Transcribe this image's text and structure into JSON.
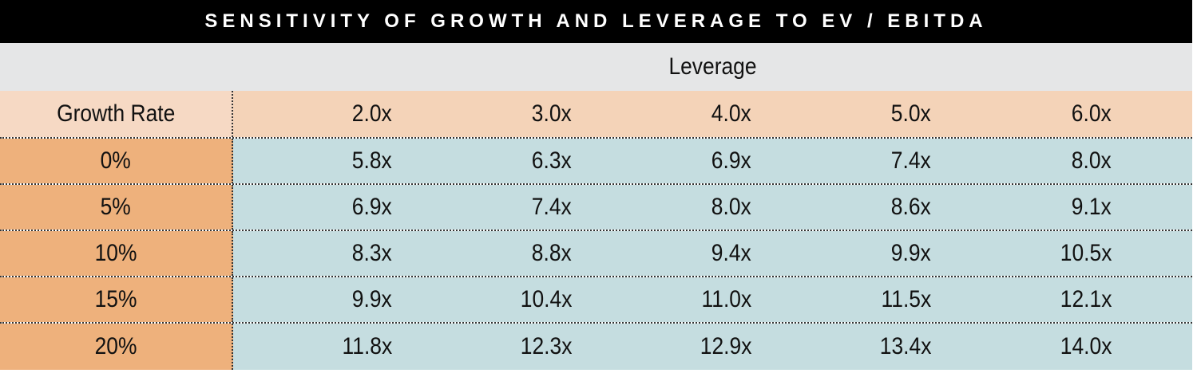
{
  "title": "SENSITIVITY OF GROWTH AND LEVERAGE TO EV / EBITDA",
  "column_group_label": "Leverage",
  "row_header_label": "Growth Rate",
  "columns": [
    "2.0x",
    "3.0x",
    "4.0x",
    "5.0x",
    "6.0x"
  ],
  "rows": [
    {
      "label": "0%",
      "values": [
        "5.8x",
        "6.3x",
        "6.9x",
        "7.4x",
        "8.0x"
      ]
    },
    {
      "label": "5%",
      "values": [
        "6.9x",
        "7.4x",
        "8.0x",
        "8.6x",
        "9.1x"
      ]
    },
    {
      "label": "10%",
      "values": [
        "8.3x",
        "8.8x",
        "9.4x",
        "9.9x",
        "10.5x"
      ]
    },
    {
      "label": "15%",
      "values": [
        "9.9x",
        "10.4x",
        "11.0x",
        "11.5x",
        "12.1x"
      ]
    },
    {
      "label": "20%",
      "values": [
        "11.8x",
        "12.3x",
        "12.9x",
        "13.4x",
        "14.0x"
      ]
    }
  ],
  "colors": {
    "title_bg": "#000000",
    "leverage_row_bg": "#e5e6e7",
    "header_row_label_bg": "#f6d9c4",
    "header_row_bg": "#f4d3b8",
    "row_label_bg": "#eeb17c",
    "data_bg": "#c5dde0"
  }
}
